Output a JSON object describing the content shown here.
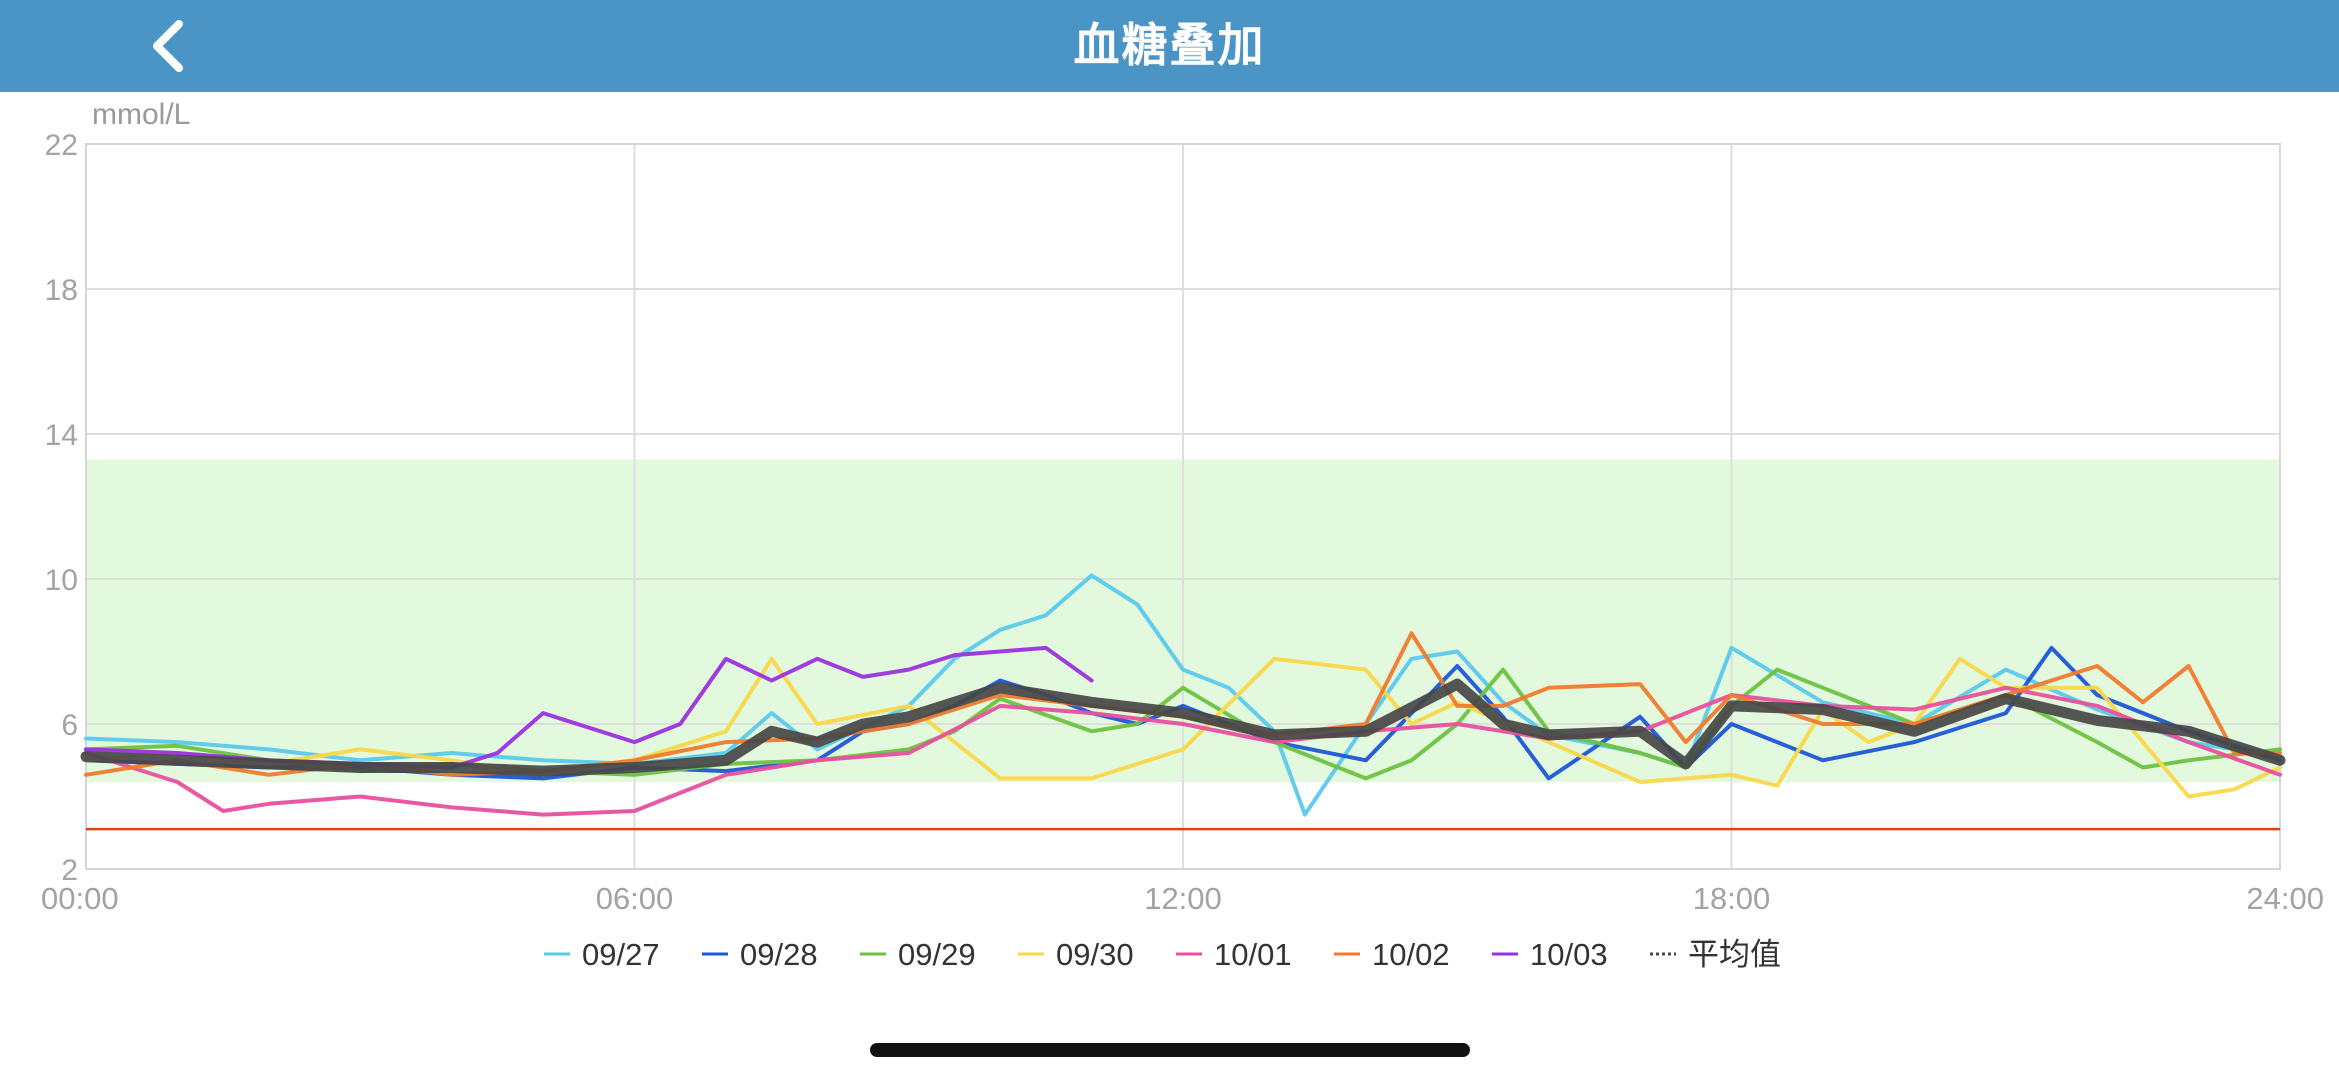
{
  "header": {
    "title": "血糖叠加",
    "back_icon": "chevron-left-icon",
    "background": "#4a95c5"
  },
  "chart_data": {
    "type": "line",
    "ylabel": "mmol/L",
    "xlim": [
      "00:00",
      "24:00"
    ],
    "ylim": [
      2,
      22
    ],
    "x_ticks": [
      "00:00",
      "06:00",
      "12:00",
      "18:00",
      "24:00"
    ],
    "y_ticks": [
      2,
      6,
      10,
      14,
      18,
      22
    ],
    "grid": true,
    "target_range": {
      "low": 4.4,
      "high": 13.3,
      "color": "#e2f9dd"
    },
    "low_threshold": {
      "value": 3.1,
      "color": "#d84315"
    },
    "legend_position": "bottom-center",
    "series": [
      {
        "name": "09/27",
        "color": "#5bc9ec",
        "x": [
          "00:00",
          "01:00",
          "02:00",
          "03:00",
          "04:00",
          "05:00",
          "06:00",
          "07:00",
          "07:30",
          "08:00",
          "09:00",
          "09:30",
          "10:00",
          "10:30",
          "11:00",
          "11:30",
          "12:00",
          "12:30",
          "13:00",
          "13:20",
          "14:00",
          "14:30",
          "15:00",
          "15:30",
          "16:00",
          "17:00",
          "17:30",
          "18:00",
          "19:00",
          "20:00",
          "21:00",
          "22:00",
          "23:00",
          "24:00"
        ],
        "y": [
          5.6,
          5.5,
          5.3,
          5.0,
          5.2,
          5.0,
          4.9,
          5.2,
          6.3,
          5.3,
          6.5,
          7.8,
          8.6,
          9.0,
          10.1,
          9.3,
          7.5,
          7.0,
          5.8,
          3.5,
          6.0,
          7.8,
          8.0,
          6.6,
          5.7,
          5.2,
          4.8,
          8.1,
          6.6,
          6.0,
          7.5,
          6.4,
          5.5,
          5.1
        ]
      },
      {
        "name": "09/28",
        "color": "#1e56d8",
        "x": [
          "00:00",
          "01:00",
          "02:00",
          "03:00",
          "04:00",
          "05:00",
          "06:00",
          "07:00",
          "08:00",
          "08:30",
          "09:00",
          "09:30",
          "10:00",
          "10:30",
          "11:00",
          "11:30",
          "12:00",
          "13:00",
          "14:00",
          "15:00",
          "15:30",
          "16:00",
          "17:00",
          "17:30",
          "18:00",
          "19:00",
          "20:00",
          "21:00",
          "21:30",
          "22:00",
          "23:00",
          "24:00"
        ],
        "y": [
          5.0,
          4.9,
          4.8,
          4.8,
          4.6,
          4.5,
          4.8,
          4.7,
          5.0,
          5.8,
          6.0,
          6.5,
          7.2,
          6.8,
          6.3,
          6.0,
          6.5,
          5.5,
          5.0,
          7.6,
          6.2,
          4.5,
          6.2,
          4.8,
          6.0,
          5.0,
          5.5,
          6.3,
          8.1,
          6.8,
          5.8,
          5.0
        ]
      },
      {
        "name": "09/29",
        "color": "#6cc240",
        "x": [
          "00:00",
          "01:00",
          "02:00",
          "03:00",
          "04:00",
          "05:00",
          "06:00",
          "07:00",
          "08:00",
          "09:00",
          "09:30",
          "10:00",
          "11:00",
          "11:30",
          "12:00",
          "13:00",
          "14:00",
          "14:30",
          "15:00",
          "15:30",
          "16:00",
          "17:00",
          "17:30",
          "18:00",
          "18:30",
          "19:00",
          "20:00",
          "21:00",
          "22:00",
          "22:30",
          "23:00",
          "24:00"
        ],
        "y": [
          5.3,
          5.4,
          5.0,
          4.7,
          4.9,
          4.7,
          4.6,
          4.9,
          5.0,
          5.3,
          5.8,
          6.7,
          5.8,
          6.0,
          7.0,
          5.5,
          4.5,
          5.0,
          6.0,
          7.5,
          5.8,
          5.2,
          4.8,
          6.5,
          7.5,
          7.0,
          6.0,
          6.8,
          5.5,
          4.8,
          5.0,
          5.3
        ]
      },
      {
        "name": "09/30",
        "color": "#f8d84a",
        "x": [
          "00:00",
          "01:00",
          "02:00",
          "03:00",
          "04:00",
          "05:00",
          "06:00",
          "07:00",
          "07:30",
          "08:00",
          "09:00",
          "09:30",
          "10:00",
          "11:00",
          "12:00",
          "13:00",
          "14:00",
          "14:30",
          "15:00",
          "16:00",
          "17:00",
          "18:00",
          "18:30",
          "19:00",
          "19:30",
          "20:00",
          "20:30",
          "21:00",
          "22:00",
          "23:00",
          "23:30",
          "24:00"
        ],
        "y": [
          5.0,
          5.2,
          4.9,
          5.3,
          5.0,
          4.6,
          5.0,
          5.8,
          7.8,
          6.0,
          6.5,
          5.5,
          4.5,
          4.5,
          5.3,
          7.8,
          7.5,
          6.0,
          6.6,
          5.5,
          4.4,
          4.6,
          4.3,
          6.4,
          5.5,
          6.0,
          7.8,
          7.0,
          7.0,
          4.0,
          4.2,
          4.8
        ]
      },
      {
        "name": "10/01",
        "color": "#e8509e",
        "x": [
          "00:00",
          "00:30",
          "01:00",
          "01:30",
          "02:00",
          "03:00",
          "04:00",
          "05:00",
          "06:00",
          "06:30",
          "07:00",
          "08:00",
          "09:00",
          "10:00",
          "11:00",
          "12:00",
          "13:00",
          "14:00",
          "15:00",
          "16:00",
          "17:00",
          "18:00",
          "19:00",
          "20:00",
          "21:00",
          "22:00",
          "23:00",
          "24:00"
        ],
        "y": [
          5.2,
          4.8,
          4.4,
          3.6,
          3.8,
          4.0,
          3.7,
          3.5,
          3.6,
          4.1,
          4.6,
          5.0,
          5.2,
          6.5,
          6.3,
          6.0,
          5.5,
          5.8,
          6.0,
          5.6,
          5.8,
          6.8,
          6.5,
          6.4,
          7.0,
          6.5,
          5.5,
          4.6
        ]
      },
      {
        "name": "10/02",
        "color": "#f07a2c",
        "x": [
          "00:00",
          "01:00",
          "02:00",
          "03:00",
          "04:00",
          "05:00",
          "06:00",
          "07:00",
          "08:00",
          "09:00",
          "10:00",
          "11:00",
          "12:00",
          "13:00",
          "14:00",
          "14:30",
          "15:00",
          "15:30",
          "16:00",
          "17:00",
          "17:30",
          "18:00",
          "19:00",
          "20:00",
          "21:00",
          "22:00",
          "22:30",
          "23:00",
          "23:30",
          "24:00"
        ],
        "y": [
          4.6,
          5.0,
          4.6,
          4.9,
          4.6,
          4.7,
          5.0,
          5.5,
          5.6,
          6.0,
          6.8,
          6.5,
          6.2,
          5.7,
          6.0,
          8.5,
          6.5,
          6.5,
          7.0,
          7.1,
          5.5,
          6.8,
          6.0,
          6.0,
          6.8,
          7.6,
          6.6,
          7.6,
          5.2,
          5.2
        ]
      },
      {
        "name": "10/03",
        "color": "#9b30e0",
        "x": [
          "00:00",
          "01:00",
          "02:00",
          "03:00",
          "04:00",
          "04:30",
          "05:00",
          "06:00",
          "06:30",
          "07:00",
          "07:30",
          "08:00",
          "08:30",
          "09:00",
          "09:30",
          "10:00",
          "10:30",
          "11:00"
        ],
        "y": [
          5.3,
          5.2,
          5.0,
          4.9,
          4.8,
          5.2,
          6.3,
          5.5,
          6.0,
          7.8,
          7.2,
          7.8,
          7.3,
          7.5,
          7.9,
          8.0,
          8.1,
          7.2
        ]
      },
      {
        "name": "平均值",
        "color": "#474747",
        "style": "dotted",
        "x": [
          "00:00",
          "01:00",
          "02:00",
          "03:00",
          "04:00",
          "05:00",
          "06:00",
          "07:00",
          "07:30",
          "08:00",
          "08:30",
          "09:00",
          "10:00",
          "11:00",
          "12:00",
          "13:00",
          "14:00",
          "15:00",
          "15:30",
          "16:00",
          "17:00",
          "17:30",
          "18:00",
          "19:00",
          "20:00",
          "21:00",
          "22:00",
          "23:00",
          "24:00"
        ],
        "y": [
          5.1,
          5.0,
          4.9,
          4.8,
          4.8,
          4.7,
          4.8,
          5.0,
          5.8,
          5.5,
          6.0,
          6.2,
          7.0,
          6.6,
          6.3,
          5.7,
          5.8,
          7.1,
          6.0,
          5.7,
          5.8,
          4.9,
          6.5,
          6.4,
          5.8,
          6.7,
          6.1,
          5.8,
          5.0
        ]
      }
    ]
  }
}
